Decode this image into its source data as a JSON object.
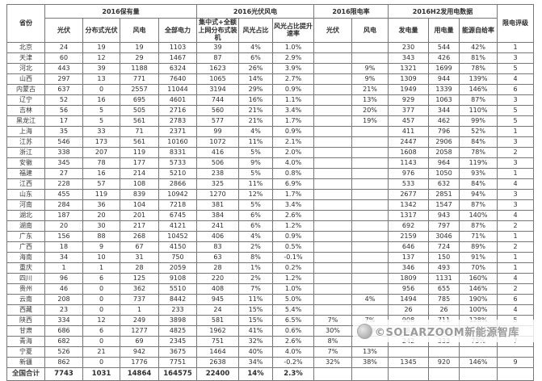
{
  "chart_data": {
    "type": "table",
    "title": "",
    "header": {
      "province": "省份",
      "groups": [
        {
          "label": "2016保有量",
          "cols": [
            "光伏",
            "分布式光伏",
            "风电",
            "全部电力"
          ]
        },
        {
          "label": "2016光伏风电",
          "cols": [
            "集中式+全额上网分布式装机",
            "风光占比",
            "风光占比提升速率"
          ]
        },
        {
          "label": "2016限电率",
          "cols": [
            "光伏",
            "风电"
          ]
        },
        {
          "label": "2016H2发用电数据",
          "cols": [
            "发电量",
            "用电量",
            "能源自给率"
          ]
        }
      ],
      "rating": "限电评级"
    },
    "rows": [
      [
        "北京",
        "24",
        "19",
        "19",
        "1103",
        "39",
        "4%",
        "1.0%",
        "",
        "",
        "230",
        "544",
        "42%",
        "1"
      ],
      [
        "天津",
        "60",
        "12",
        "29",
        "1467",
        "87",
        "6%",
        "2.9%",
        "",
        "",
        "343",
        "426",
        "81%",
        "3"
      ],
      [
        "河北",
        "443",
        "39",
        "1188",
        "6324",
        "1623",
        "26%",
        "3.9%",
        "",
        "9%",
        "1321",
        "1699",
        "78%",
        "5"
      ],
      [
        "山西",
        "297",
        "13",
        "771",
        "7640",
        "1065",
        "14%",
        "2.7%",
        "",
        "9%",
        "1309",
        "944",
        "139%",
        "4"
      ],
      [
        "内蒙古",
        "637",
        "0",
        "2557",
        "11044",
        "3194",
        "29%",
        "0.9%",
        "",
        "21%",
        "1949",
        "1339",
        "146%",
        "6"
      ],
      [
        "辽宁",
        "52",
        "16",
        "695",
        "4601",
        "744",
        "16%",
        "1.1%",
        "",
        "13%",
        "929",
        "1063",
        "87%",
        "3"
      ],
      [
        "吉林",
        "56",
        "5",
        "505",
        "2716",
        "560",
        "21%",
        "3.4%",
        "",
        "20%",
        "377",
        "344",
        "110%",
        "5"
      ],
      [
        "黑龙江",
        "17",
        "5",
        "561",
        "2783",
        "577",
        "21%",
        "1.7%",
        "",
        "19%",
        "457",
        "462",
        "99%",
        "5"
      ],
      [
        "上海",
        "35",
        "33",
        "71",
        "2371",
        "99",
        "4%",
        "0.9%",
        "",
        "",
        "411",
        "796",
        "52%",
        "1"
      ],
      [
        "江苏",
        "546",
        "173",
        "561",
        "10160",
        "1072",
        "11%",
        "2.1%",
        "",
        "",
        "2447",
        "2906",
        "84%",
        "3"
      ],
      [
        "浙江",
        "338",
        "207",
        "119",
        "8331",
        "416",
        "5%",
        "2.0%",
        "",
        "",
        "1608",
        "2058",
        "78%",
        "2"
      ],
      [
        "安徽",
        "345",
        "78",
        "177",
        "5733",
        "506",
        "9%",
        "4.0%",
        "",
        "",
        "1143",
        "964",
        "119%",
        "3"
      ],
      [
        "福建",
        "27",
        "16",
        "214",
        "5210",
        "238",
        "5%",
        "0.8%",
        "",
        "",
        "976",
        "1050",
        "93%",
        "1"
      ],
      [
        "江西",
        "228",
        "57",
        "108",
        "2866",
        "325",
        "11%",
        "6.9%",
        "",
        "",
        "533",
        "632",
        "84%",
        "4"
      ],
      [
        "山东",
        "455",
        "119",
        "839",
        "10942",
        "1270",
        "12%",
        "1.7%",
        "",
        "",
        "2677",
        "2851",
        "94%",
        "3"
      ],
      [
        "河南",
        "284",
        "36",
        "104",
        "7218",
        "381",
        "5%",
        "3.4%",
        "",
        "",
        "1342",
        "1547",
        "87%",
        "3"
      ],
      [
        "湖北",
        "187",
        "20",
        "201",
        "6745",
        "384",
        "6%",
        "2.6%",
        "",
        "",
        "1317",
        "943",
        "140%",
        "4"
      ],
      [
        "湖南",
        "20",
        "30",
        "217",
        "4121",
        "241",
        "6%",
        "1.2%",
        "",
        "",
        "692",
        "797",
        "87%",
        "2"
      ],
      [
        "广东",
        "156",
        "88",
        "268",
        "10452",
        "406",
        "4%",
        "0.9%",
        "",
        "",
        "2159",
        "3046",
        "71%",
        "1"
      ],
      [
        "广西",
        "18",
        "9",
        "67",
        "4150",
        "83",
        "2%",
        "0.5%",
        "",
        "",
        "646",
        "724",
        "89%",
        "2"
      ],
      [
        "海南",
        "34",
        "10",
        "31",
        "750",
        "63",
        "8%",
        "-0.1%",
        "",
        "",
        "137",
        "150",
        "91%",
        "1"
      ],
      [
        "重庆",
        "1",
        "1",
        "28",
        "2059",
        "28",
        "1%",
        "0.2%",
        "",
        "",
        "346",
        "493",
        "70%",
        "1"
      ],
      [
        "四川",
        "96",
        "6",
        "125",
        "9108",
        "220",
        "2%",
        "1.2%",
        "",
        "",
        "1809",
        "1131",
        "160%",
        "4"
      ],
      [
        "贵州",
        "46",
        "0",
        "362",
        "5510",
        "408",
        "7%",
        "1.0%",
        "",
        "",
        "956",
        "655",
        "146%",
        "2"
      ],
      [
        "云南",
        "208",
        "0",
        "737",
        "8442",
        "945",
        "11%",
        "5.0%",
        "",
        "4%",
        "1494",
        "785",
        "190%",
        "6"
      ],
      [
        "西藏",
        "23",
        "0",
        "1",
        "233",
        "24",
        "15%",
        "5.4%",
        "",
        "",
        "26",
        "26",
        "100%",
        "4"
      ],
      [
        "陕西",
        "334",
        "12",
        "249",
        "3898",
        "581",
        "15%",
        "6.5%",
        "7%",
        "7%",
        "908",
        "711",
        "128%",
        "5"
      ],
      [
        "甘肃",
        "686",
        "6",
        "1277",
        "4825",
        "1962",
        "41%",
        "0.6%",
        "30%",
        "43%",
        "582",
        "561",
        "104%",
        "10"
      ],
      [
        "青海",
        "682",
        "0",
        "69",
        "2345",
        "751",
        "32%",
        "2.6%",
        "8%",
        "",
        "242",
        "333",
        "73%",
        "7"
      ],
      [
        "宁夏",
        "526",
        "21",
        "942",
        "3675",
        "1464",
        "40%",
        "4.0%",
        "7%",
        "13%",
        "",
        "",
        "",
        ""
      ],
      [
        "新疆",
        "862",
        "0",
        "1776",
        "7751",
        "2638",
        "34%",
        "-0.2%",
        "32%",
        "38%",
        "1345",
        "920",
        "146%",
        "9"
      ]
    ],
    "total": [
      "全国合计",
      "7743",
      "1031",
      "14864",
      "164575",
      "22400",
      "14%",
      "2.3%",
      "",
      "",
      "",
      "",
      "",
      ""
    ]
  },
  "watermark": {
    "text": "©SOLARZOOM新能源智库"
  },
  "colors": {
    "grid": "#777777",
    "text": "#2e2e2e",
    "watermark_text": "#9b9b9b",
    "background": "#ffffff"
  }
}
